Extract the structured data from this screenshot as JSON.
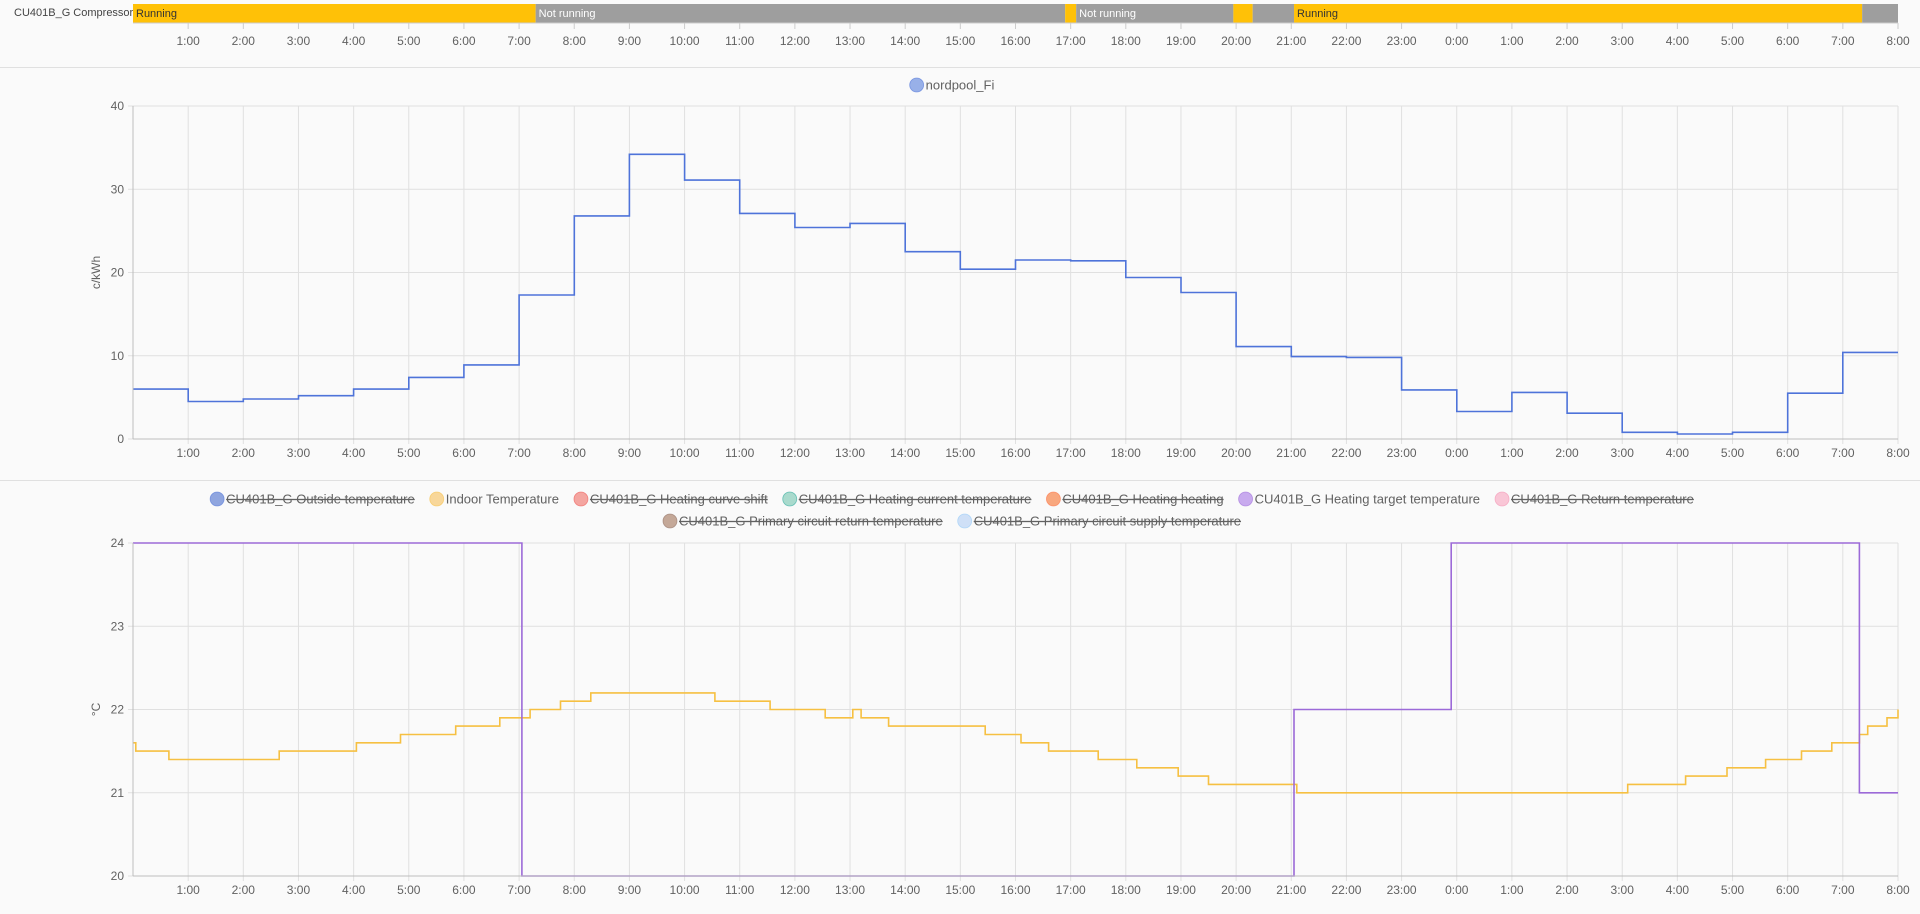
{
  "timeline": {
    "entity_label": "CU401B_G Compressor",
    "segments": [
      {
        "start": 0.0,
        "end": 7.3,
        "state": "Running",
        "label": "Running",
        "color": "#ffc107"
      },
      {
        "start": 7.3,
        "end": 16.9,
        "state": "Not running",
        "label": "Not running",
        "color": "#9e9e9e"
      },
      {
        "start": 16.9,
        "end": 17.1,
        "state": "Running",
        "label": "",
        "color": "#ffc107"
      },
      {
        "start": 17.1,
        "end": 19.95,
        "state": "Not running",
        "label": "Not running",
        "color": "#9e9e9e"
      },
      {
        "start": 19.95,
        "end": 20.3,
        "state": "Running",
        "label": "",
        "color": "#ffc107"
      },
      {
        "start": 20.3,
        "end": 21.05,
        "state": "Not running",
        "label": "",
        "color": "#9e9e9e"
      },
      {
        "start": 21.05,
        "end": 31.35,
        "state": "Running",
        "label": "Running",
        "color": "#ffc107"
      },
      {
        "start": 31.35,
        "end": 32.0,
        "state": "Not running",
        "label": "",
        "color": "#9e9e9e"
      }
    ]
  },
  "time_axis": {
    "ticks": [
      "1:00",
      "2:00",
      "3:00",
      "4:00",
      "5:00",
      "6:00",
      "7:00",
      "8:00",
      "9:00",
      "10:00",
      "11:00",
      "12:00",
      "13:00",
      "14:00",
      "15:00",
      "16:00",
      "17:00",
      "18:00",
      "19:00",
      "20:00",
      "21:00",
      "22:00",
      "23:00",
      "0:00",
      "1:00",
      "2:00",
      "3:00",
      "4:00",
      "5:00",
      "6:00",
      "7:00",
      "8:00"
    ]
  },
  "chart_data": [
    {
      "type": "line",
      "step": true,
      "ylabel": "c/kWh",
      "ylim": [
        0,
        40
      ],
      "yticks": [
        0,
        10,
        20,
        30,
        40
      ],
      "xlim": [
        0,
        32
      ],
      "grid": true,
      "legend_position": "top-center",
      "series": [
        {
          "name": "nordpool_Fi",
          "color": "#4e73d9",
          "legend_fill": "#98b0e8",
          "hidden": false,
          "x": [
            0,
            1,
            2,
            3,
            4,
            5,
            6,
            7,
            8,
            9,
            10,
            11,
            12,
            13,
            14,
            15,
            16,
            17,
            18,
            19,
            20,
            21,
            22,
            23,
            24,
            25,
            26,
            27,
            28,
            29,
            30,
            31,
            32
          ],
          "y": [
            6.0,
            4.5,
            4.8,
            5.2,
            6.0,
            7.4,
            8.9,
            17.3,
            26.8,
            34.2,
            31.1,
            27.1,
            25.4,
            25.9,
            22.5,
            20.4,
            21.5,
            21.4,
            19.4,
            17.6,
            11.1,
            9.9,
            9.8,
            5.9,
            3.3,
            5.6,
            3.1,
            0.8,
            0.6,
            0.8,
            5.5,
            10.4,
            10.4
          ]
        }
      ]
    },
    {
      "type": "line",
      "step": true,
      "ylabel": "°C",
      "ylim": [
        20,
        24
      ],
      "yticks": [
        20,
        21,
        22,
        23,
        24
      ],
      "xlim": [
        0,
        32
      ],
      "grid": true,
      "legend_position": "top-center",
      "series": [
        {
          "name": "CU401B_G Outside temperature",
          "color": "#4e73d9",
          "legend_fill": "#8fa5df",
          "hidden": true
        },
        {
          "name": "Indoor Temperature",
          "color": "#f6c042",
          "legend_fill": "#f8d79a",
          "hidden": false,
          "x": [
            0,
            0.05,
            0.65,
            2.65,
            4.05,
            4.85,
            5.85,
            6.65,
            7.2,
            7.75,
            8.3,
            8.8,
            10.55,
            11.55,
            12.55,
            13.05,
            13.2,
            13.4,
            13.7,
            14.25,
            15.45,
            16.1,
            16.6,
            17.5,
            18.2,
            18.95,
            19.5,
            21.1,
            27.1,
            28.15,
            28.9,
            29.6,
            30.25,
            30.8,
            31.3,
            31.45,
            31.8,
            32
          ],
          "y": [
            21.6,
            21.5,
            21.4,
            21.5,
            21.6,
            21.7,
            21.8,
            21.9,
            22.0,
            22.1,
            22.2,
            22.2,
            22.1,
            22.0,
            21.9,
            22.0,
            21.9,
            21.9,
            21.8,
            21.8,
            21.7,
            21.6,
            21.5,
            21.4,
            21.3,
            21.2,
            21.1,
            21.0,
            21.1,
            21.2,
            21.3,
            21.4,
            21.5,
            21.6,
            21.7,
            21.8,
            21.9,
            22.0
          ]
        },
        {
          "name": "CU401B_G Heating curve shift",
          "color": "#ef5350",
          "legend_fill": "#f4a5a0",
          "hidden": true
        },
        {
          "name": "CU401B_G Heating current temperature",
          "color": "#26a69a",
          "legend_fill": "#a9dacd",
          "hidden": true
        },
        {
          "name": "CU401B_G Heating heating",
          "color": "#ff7043",
          "legend_fill": "#f8a77e",
          "hidden": true
        },
        {
          "name": "CU401B_G Heating target temperature",
          "color": "#9c6ad8",
          "legend_fill": "#c8aaee",
          "hidden": false,
          "x": [
            0,
            7.05,
            21.05,
            23.9,
            31.3,
            32
          ],
          "y": [
            24,
            20,
            22,
            24,
            21,
            21
          ]
        },
        {
          "name": "CU401B_G Return temperature",
          "color": "#f48fb1",
          "legend_fill": "#f9c6d6",
          "hidden": true
        },
        {
          "name": "CU401B_G Primary circuit return temperature",
          "color": "#8d6e63",
          "legend_fill": "#c4a898",
          "hidden": true
        },
        {
          "name": "CU401B_G Primary circuit supply temperature",
          "color": "#90caf9",
          "legend_fill": "#cfe0f7",
          "hidden": true
        }
      ]
    }
  ]
}
